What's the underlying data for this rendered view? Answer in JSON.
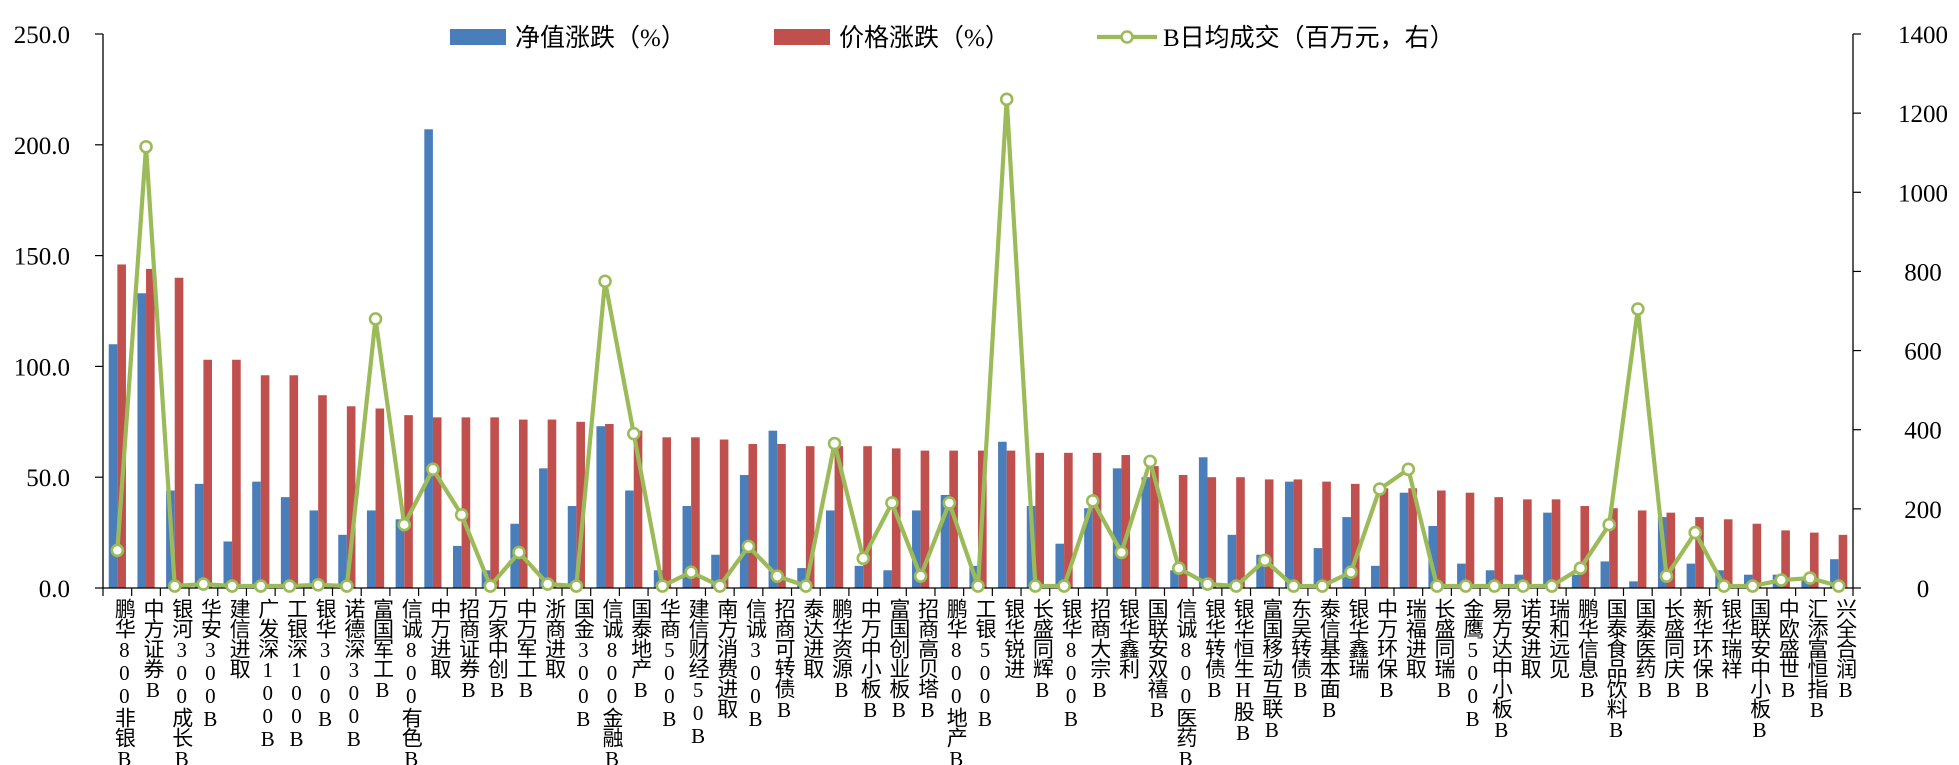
{
  "chart_data": {
    "type": "bar",
    "legend": {
      "position": "top",
      "entries": [
        {
          "key": "nav",
          "label": "净值涨跌（%）"
        },
        {
          "key": "price",
          "label": "价格涨跌（%）"
        },
        {
          "key": "volume",
          "label": "B日均成交（百万元，右）"
        }
      ]
    },
    "colors": {
      "nav": "#4A7EBB",
      "price": "#C0504D",
      "volume": "#9BBB59"
    },
    "grid": false,
    "y_left": {
      "min": 0,
      "max": 250,
      "step": 50,
      "ticks": [
        "0.0",
        "50.0",
        "100.0",
        "150.0",
        "200.0",
        "250.0"
      ]
    },
    "y_right": {
      "min": 0,
      "max": 1400,
      "step": 200,
      "ticks": [
        "0",
        "200",
        "400",
        "600",
        "800",
        "1000",
        "1200",
        "1400"
      ]
    },
    "categories": [
      "鹏华800非银B",
      "中方证券B",
      "银河300成长B",
      "华安300B",
      "建信进取",
      "广发深100B",
      "工银深100B",
      "银华300B",
      "诺德深300B",
      "富国军工B",
      "信诚800有色B",
      "中万进取",
      "招商证券B",
      "万家中创B",
      "中万军工B",
      "浙商进取",
      "国金300B",
      "信诚800金融B",
      "国泰地产B",
      "华商500B",
      "建信财经50B",
      "南方消费进取",
      "信诚300B",
      "招商可转债B",
      "泰达进取",
      "鹏华资源B",
      "中万中小板B",
      "富国创业板B",
      "招商高贝塔B",
      "鹏华800地产B",
      "工银500B",
      "银华锐进",
      "长盛同辉B",
      "银华800B",
      "招商大宗B",
      "银华鑫利",
      "国联安双禧B",
      "信诚800医药B",
      "银华转债B",
      "银华恒生H股B",
      "富国移动互联B",
      "东吴转债B",
      "泰信基本面B",
      "银华鑫瑞",
      "中万环保B",
      "瑞福进取",
      "长盛同瑞B",
      "金鹰500B",
      "易方达中小板B",
      "诺安进取",
      "瑞和远见",
      "鹏华信息B",
      "国泰食品饮料B",
      "国泰医药B",
      "长盛同庆B",
      "新华环保B",
      "银华瑞祥",
      "国联安中小板B",
      "中欧盛世B",
      "汇添富恒指B",
      "兴全合润B"
    ],
    "series": [
      {
        "name": "净值涨跌（%）",
        "key": "nav",
        "axis": "left",
        "type": "bar",
        "values": [
          110,
          133,
          44,
          47,
          21,
          48,
          41,
          35,
          24,
          35,
          31,
          207,
          19,
          8,
          29,
          54,
          37,
          73,
          44,
          8,
          37,
          15,
          51,
          71,
          9,
          35,
          10,
          8,
          35,
          42,
          10,
          66,
          37,
          20,
          36,
          54,
          50,
          8,
          59,
          24,
          15,
          48,
          18,
          32,
          10,
          43,
          28,
          11,
          8,
          6,
          34,
          6,
          12,
          3,
          32,
          11,
          8,
          6,
          6,
          5,
          13
        ]
      },
      {
        "name": "价格涨跌（%）",
        "key": "price",
        "axis": "left",
        "type": "bar",
        "values": [
          146,
          144,
          140,
          103,
          103,
          96,
          96,
          87,
          82,
          81,
          78,
          77,
          77,
          77,
          76,
          76,
          75,
          74,
          71,
          68,
          68,
          67,
          65,
          65,
          64,
          64,
          64,
          63,
          62,
          62,
          62,
          62,
          61,
          61,
          61,
          60,
          55,
          51,
          50,
          50,
          49,
          49,
          48,
          47,
          45,
          45,
          44,
          43,
          41,
          40,
          40,
          37,
          36,
          35,
          34,
          32,
          31,
          29,
          26,
          25,
          24
        ]
      },
      {
        "name": "B日均成交（百万元，右）",
        "key": "volume",
        "axis": "right",
        "type": "line",
        "values": [
          95,
          1115,
          5,
          10,
          5,
          5,
          5,
          8,
          5,
          680,
          160,
          300,
          185,
          5,
          90,
          10,
          5,
          775,
          390,
          5,
          40,
          5,
          105,
          30,
          5,
          365,
          75,
          215,
          30,
          215,
          5,
          1235,
          5,
          5,
          220,
          90,
          320,
          50,
          10,
          5,
          70,
          5,
          5,
          40,
          250,
          300,
          5,
          5,
          5,
          5,
          5,
          50,
          160,
          705,
          30,
          140,
          5,
          5,
          20,
          25,
          5
        ]
      }
    ]
  }
}
